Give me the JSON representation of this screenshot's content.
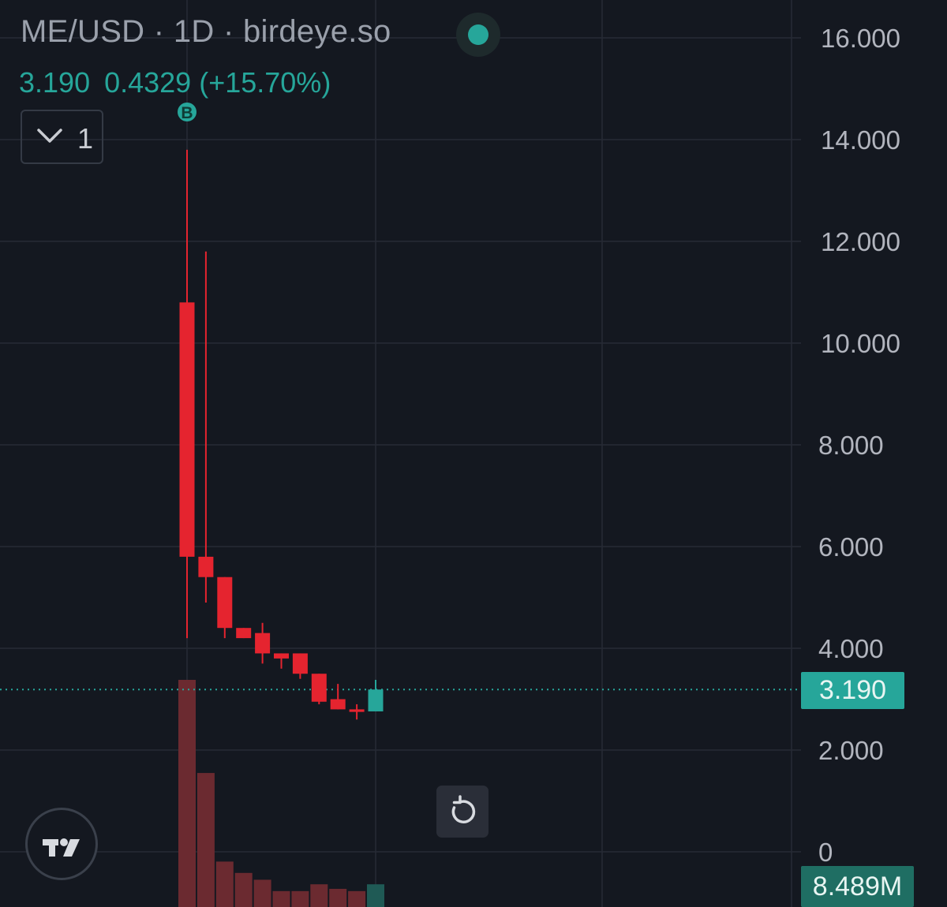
{
  "header": {
    "title": "ME/USD · 1D · birdeye.so",
    "last_price": "3.190",
    "change": "0.4329 (+15.70%)",
    "indicator_count": "1"
  },
  "price_tag": "3.190",
  "volume_tag": "8.489M",
  "colors": {
    "background": "#141820",
    "up": "#26a69a",
    "down": "#e5242f",
    "volume_up": "#1f5a55",
    "volume_down": "#6b2a30",
    "grid": "#262b35",
    "axis_text": "#b2b5be"
  },
  "icons": {
    "status": "status-dot-icon",
    "collapse": "chevron-down-icon",
    "logo": "tradingview-logo-icon",
    "reset": "reset-chart-icon",
    "marker": "buy-marker-icon"
  },
  "chart_data": {
    "type": "candlestick",
    "symbol": "ME/USD",
    "interval": "1D",
    "y_ticks": [
      "16.000",
      "14.000",
      "12.000",
      "10.000",
      "8.000",
      "6.000",
      "4.000",
      "2.000",
      "0"
    ],
    "ylim": [
      0,
      16.7
    ],
    "grid": true,
    "last_price": 3.19,
    "marker": {
      "label": "B",
      "candle_index": 0
    },
    "candles": [
      {
        "open": 10.8,
        "high": 13.8,
        "low": 4.2,
        "close": 5.8
      },
      {
        "open": 5.8,
        "high": 11.8,
        "low": 4.9,
        "close": 5.4
      },
      {
        "open": 5.4,
        "high": 5.4,
        "low": 4.2,
        "close": 4.4
      },
      {
        "open": 4.4,
        "high": 4.4,
        "low": 4.2,
        "close": 4.2
      },
      {
        "open": 4.3,
        "high": 4.5,
        "low": 3.7,
        "close": 3.9
      },
      {
        "open": 3.9,
        "high": 3.9,
        "low": 3.6,
        "close": 3.8
      },
      {
        "open": 3.9,
        "high": 3.9,
        "low": 3.4,
        "close": 3.5
      },
      {
        "open": 3.5,
        "high": 3.5,
        "low": 2.9,
        "close": 2.95
      },
      {
        "open": 3.0,
        "high": 3.3,
        "low": 2.8,
        "close": 2.8
      },
      {
        "open": 2.8,
        "high": 2.9,
        "low": 2.6,
        "close": 2.75
      },
      {
        "open": 2.76,
        "high": 3.38,
        "low": 2.76,
        "close": 3.19
      }
    ],
    "volume_relative": [
      1.0,
      0.59,
      0.2,
      0.15,
      0.12,
      0.07,
      0.07,
      0.1,
      0.08,
      0.07,
      0.1
    ],
    "last_volume": "8.489M"
  }
}
